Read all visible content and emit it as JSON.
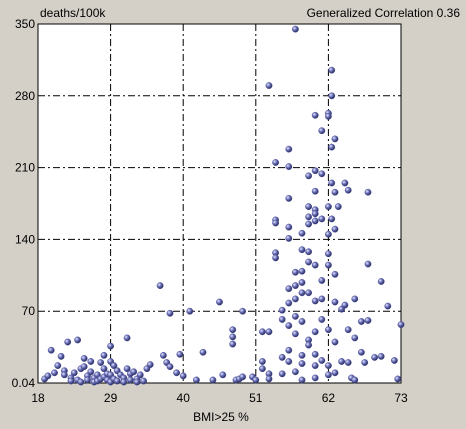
{
  "chart_data": {
    "type": "scatter",
    "ylabel": "deaths/100k",
    "annotation": "Generalized Correlation 0.36",
    "xlabel": "BMI>25 %",
    "xlim": [
      18,
      73
    ],
    "ylim": [
      0.04,
      350
    ],
    "x_ticks": [
      "18",
      "29",
      "40",
      "51",
      "62",
      "73"
    ],
    "y_ticks": [
      "0.04",
      "70",
      "140",
      "210",
      "280",
      "350"
    ],
    "grid": true,
    "marker_color": "#4a4f96",
    "points": [
      [
        19,
        4
      ],
      [
        19.5,
        7
      ],
      [
        20,
        32
      ],
      [
        20.5,
        10
      ],
      [
        21,
        17
      ],
      [
        21.5,
        26
      ],
      [
        22,
        12
      ],
      [
        22,
        8
      ],
      [
        22.5,
        40
      ],
      [
        23,
        5
      ],
      [
        23,
        2
      ],
      [
        23.5,
        10
      ],
      [
        24,
        42
      ],
      [
        24,
        3
      ],
      [
        24.5,
        14
      ],
      [
        24.5,
        1
      ],
      [
        25,
        24
      ],
      [
        25,
        16
      ],
      [
        25.5,
        7
      ],
      [
        25.5,
        3
      ],
      [
        26,
        21
      ],
      [
        26,
        11
      ],
      [
        26.5,
        5
      ],
      [
        26.5,
        1
      ],
      [
        27,
        8
      ],
      [
        27,
        2
      ],
      [
        27.5,
        20
      ],
      [
        27.5,
        4
      ],
      [
        28,
        27
      ],
      [
        28,
        14
      ],
      [
        28,
        6
      ],
      [
        28.5,
        9
      ],
      [
        28.5,
        3
      ],
      [
        29,
        36
      ],
      [
        29,
        21
      ],
      [
        29,
        8
      ],
      [
        29,
        1
      ],
      [
        29.5,
        17
      ],
      [
        29.5,
        4
      ],
      [
        30,
        12
      ],
      [
        30,
        2
      ],
      [
        30.5,
        8
      ],
      [
        31,
        5
      ],
      [
        31,
        1
      ],
      [
        31.5,
        44
      ],
      [
        31.5,
        14
      ],
      [
        32,
        9
      ],
      [
        32,
        3
      ],
      [
        32.5,
        11
      ],
      [
        33,
        4
      ],
      [
        33,
        1
      ],
      [
        33.5,
        8
      ],
      [
        34,
        2
      ],
      [
        34.5,
        14
      ],
      [
        35,
        18
      ],
      [
        36.5,
        95
      ],
      [
        37,
        27
      ],
      [
        37.5,
        20
      ],
      [
        38,
        16
      ],
      [
        38,
        68
      ],
      [
        39,
        10
      ],
      [
        39.5,
        28
      ],
      [
        40,
        7
      ],
      [
        41,
        70
      ],
      [
        42,
        3
      ],
      [
        43,
        30
      ],
      [
        44.5,
        3
      ],
      [
        45.5,
        79
      ],
      [
        46,
        8
      ],
      [
        47.5,
        52
      ],
      [
        47.5,
        45
      ],
      [
        47.5,
        38
      ],
      [
        48,
        3
      ],
      [
        48.5,
        4
      ],
      [
        49,
        70
      ],
      [
        49,
        6
      ],
      [
        50.5,
        6
      ],
      [
        51,
        3
      ],
      [
        52,
        14
      ],
      [
        52,
        50
      ],
      [
        52,
        21
      ],
      [
        53,
        9
      ],
      [
        53,
        4
      ],
      [
        53,
        290
      ],
      [
        53,
        50
      ],
      [
        54,
        215
      ],
      [
        54,
        159
      ],
      [
        54,
        156
      ],
      [
        54,
        127
      ],
      [
        54,
        122
      ],
      [
        55,
        25
      ],
      [
        55,
        71
      ],
      [
        55,
        9
      ],
      [
        55,
        62
      ],
      [
        56,
        228
      ],
      [
        56,
        211
      ],
      [
        56,
        180
      ],
      [
        56,
        152
      ],
      [
        56,
        141
      ],
      [
        56,
        92
      ],
      [
        56,
        78
      ],
      [
        56,
        56
      ],
      [
        56,
        32
      ],
      [
        56,
        21
      ],
      [
        57,
        345
      ],
      [
        57,
        108
      ],
      [
        57,
        95
      ],
      [
        57,
        82
      ],
      [
        57,
        65
      ],
      [
        57,
        48
      ],
      [
        57,
        11
      ],
      [
        58,
        146
      ],
      [
        58,
        130
      ],
      [
        58,
        109
      ],
      [
        58,
        98
      ],
      [
        58,
        88
      ],
      [
        58,
        60
      ],
      [
        58,
        27
      ],
      [
        58,
        19
      ],
      [
        58,
        3
      ],
      [
        59,
        202
      ],
      [
        59,
        172
      ],
      [
        59,
        162
      ],
      [
        59,
        155
      ],
      [
        59,
        128
      ],
      [
        59,
        118
      ],
      [
        59,
        88
      ],
      [
        59,
        42
      ],
      [
        59,
        37
      ],
      [
        60,
        261
      ],
      [
        60,
        207
      ],
      [
        60,
        187
      ],
      [
        60,
        169
      ],
      [
        60,
        165
      ],
      [
        60,
        158
      ],
      [
        60,
        115
      ],
      [
        60,
        80
      ],
      [
        60,
        50
      ],
      [
        60,
        28
      ],
      [
        60,
        17
      ],
      [
        60,
        5
      ],
      [
        61,
        246
      ],
      [
        61,
        204
      ],
      [
        61,
        160
      ],
      [
        61,
        100
      ],
      [
        61,
        82
      ],
      [
        61,
        62
      ],
      [
        61,
        22
      ],
      [
        62,
        263
      ],
      [
        62,
        260
      ],
      [
        62,
        172
      ],
      [
        62,
        145
      ],
      [
        62,
        126
      ],
      [
        62,
        115
      ],
      [
        62,
        52
      ],
      [
        62,
        17
      ],
      [
        62,
        8
      ],
      [
        62.5,
        305
      ],
      [
        62.5,
        280
      ],
      [
        62.5,
        230
      ],
      [
        62.5,
        195
      ],
      [
        62.5,
        160
      ],
      [
        63,
        238
      ],
      [
        63,
        186
      ],
      [
        63,
        150
      ],
      [
        63,
        106
      ],
      [
        63,
        79
      ],
      [
        63,
        40
      ],
      [
        63,
        10
      ],
      [
        63.5,
        172
      ],
      [
        64,
        21
      ],
      [
        64,
        72
      ],
      [
        64.5,
        195
      ],
      [
        64.5,
        76
      ],
      [
        65,
        188
      ],
      [
        65,
        52
      ],
      [
        65,
        20
      ],
      [
        65.5,
        5
      ],
      [
        66,
        82
      ],
      [
        66,
        44
      ],
      [
        66,
        3
      ],
      [
        67,
        60
      ],
      [
        67,
        30
      ],
      [
        67.5,
        20
      ],
      [
        68,
        186
      ],
      [
        68,
        116
      ],
      [
        68,
        61
      ],
      [
        69,
        25
      ],
      [
        70,
        99
      ],
      [
        70,
        26
      ],
      [
        71,
        75
      ],
      [
        72,
        22
      ],
      [
        72.5,
        4
      ],
      [
        73,
        57
      ]
    ]
  }
}
